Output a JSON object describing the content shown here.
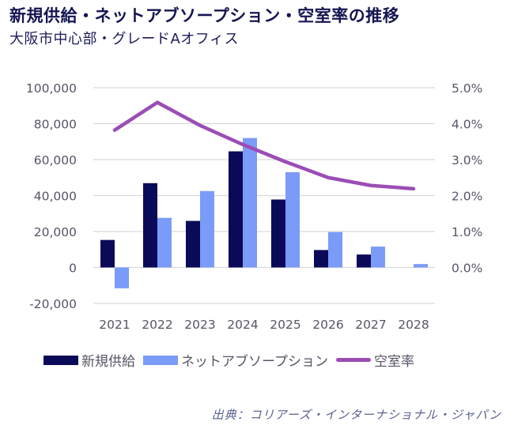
{
  "header": {
    "title": "新規供給・ネットアブソープション・空室率の推移",
    "subtitle": "大阪市中心部・グレードAオフィス"
  },
  "source": "出典：コリアーズ・インターナショナル・ジャパン",
  "colors": {
    "supply": "#0a0a58",
    "absorption": "#7b9bf8",
    "vacancy": "#9b4db5",
    "grid": "#d9d9d9"
  },
  "chart_data": {
    "type": "bar",
    "title": "新規供給・ネットアブソープション・空室率の推移",
    "subtitle": "大阪市中心部・グレードAオフィス",
    "categories": [
      "2021",
      "2022",
      "2023",
      "2024",
      "2025",
      "2026",
      "2027",
      "2028"
    ],
    "series": [
      {
        "name": "新規供給",
        "type": "bar",
        "axis": "left",
        "values": [
          15300,
          46900,
          25900,
          64600,
          37800,
          9700,
          7200,
          0
        ]
      },
      {
        "name": "ネットアブソープション",
        "type": "bar",
        "axis": "left",
        "values": [
          -11600,
          27600,
          42500,
          72000,
          53000,
          19700,
          11600,
          1900
        ]
      },
      {
        "name": "空室率",
        "type": "line",
        "axis": "right",
        "values": [
          3.82,
          4.59,
          3.95,
          3.42,
          2.94,
          2.5,
          2.28,
          2.19
        ]
      }
    ],
    "left_axis": {
      "ylim": [
        -20000,
        100000
      ],
      "ticks": [
        100000,
        80000,
        60000,
        40000,
        20000,
        0,
        -20000
      ],
      "tick_labels": [
        "100,000",
        "80,000",
        "60,000",
        "40,000",
        "20,000",
        "0",
        "-20,000"
      ]
    },
    "right_axis": {
      "ylim": [
        -1.0,
        5.0
      ],
      "ticks": [
        5.0,
        4.0,
        3.0,
        2.0,
        1.0,
        0.0
      ],
      "tick_labels": [
        "5.0%",
        "4.0%",
        "3.0%",
        "2.0%",
        "1.0%",
        "0.0%"
      ]
    },
    "xlabel": "",
    "ylabel": "",
    "grid": true,
    "legend": {
      "position": "bottom",
      "entries": [
        "新規供給",
        "ネットアブソープション",
        "空室率"
      ]
    }
  }
}
